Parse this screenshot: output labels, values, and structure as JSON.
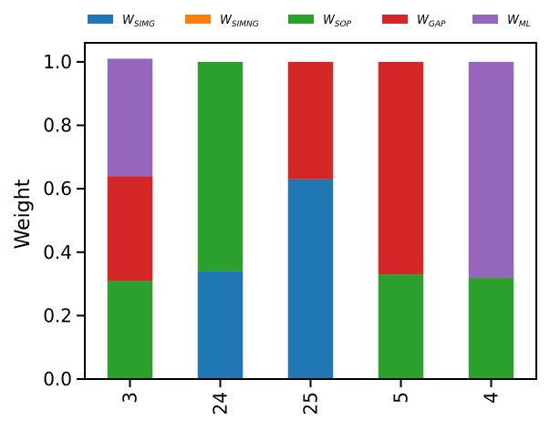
{
  "chart_data": {
    "type": "bar",
    "stacked": true,
    "categories": [
      "3",
      "24",
      "25",
      "5",
      "4"
    ],
    "series": [
      {
        "name": "W_SIMG",
        "base": "W",
        "sub": "SIMG",
        "color": "#1f77b4",
        "values": [
          0.0,
          0.34,
          0.63,
          0.0,
          0.0
        ]
      },
      {
        "name": "W_SIMNG",
        "base": "W",
        "sub": "SIMNG",
        "color": "#ff7f0e",
        "values": [
          0.0,
          0.0,
          0.0,
          0.0,
          0.0
        ]
      },
      {
        "name": "W_SOP",
        "base": "W",
        "sub": "SOP",
        "color": "#2ca02c",
        "values": [
          0.31,
          0.66,
          0.0,
          0.33,
          0.32
        ]
      },
      {
        "name": "W_GAP",
        "base": "W",
        "sub": "GAP",
        "color": "#d62728",
        "values": [
          0.33,
          0.0,
          0.37,
          0.67,
          0.0
        ]
      },
      {
        "name": "W_ML",
        "base": "W",
        "sub": "ML",
        "color": "#9467bd",
        "values": [
          0.37,
          0.0,
          0.0,
          0.0,
          0.68
        ]
      }
    ],
    "title": "",
    "xlabel": "",
    "ylabel": "Weight",
    "ylim": [
      0,
      1.06
    ],
    "yticks": [
      "0.0",
      "0.2",
      "0.4",
      "0.6",
      "0.8",
      "1.0"
    ],
    "grid": false,
    "legend_position": "top",
    "xtick_rotation": "vertical"
  }
}
